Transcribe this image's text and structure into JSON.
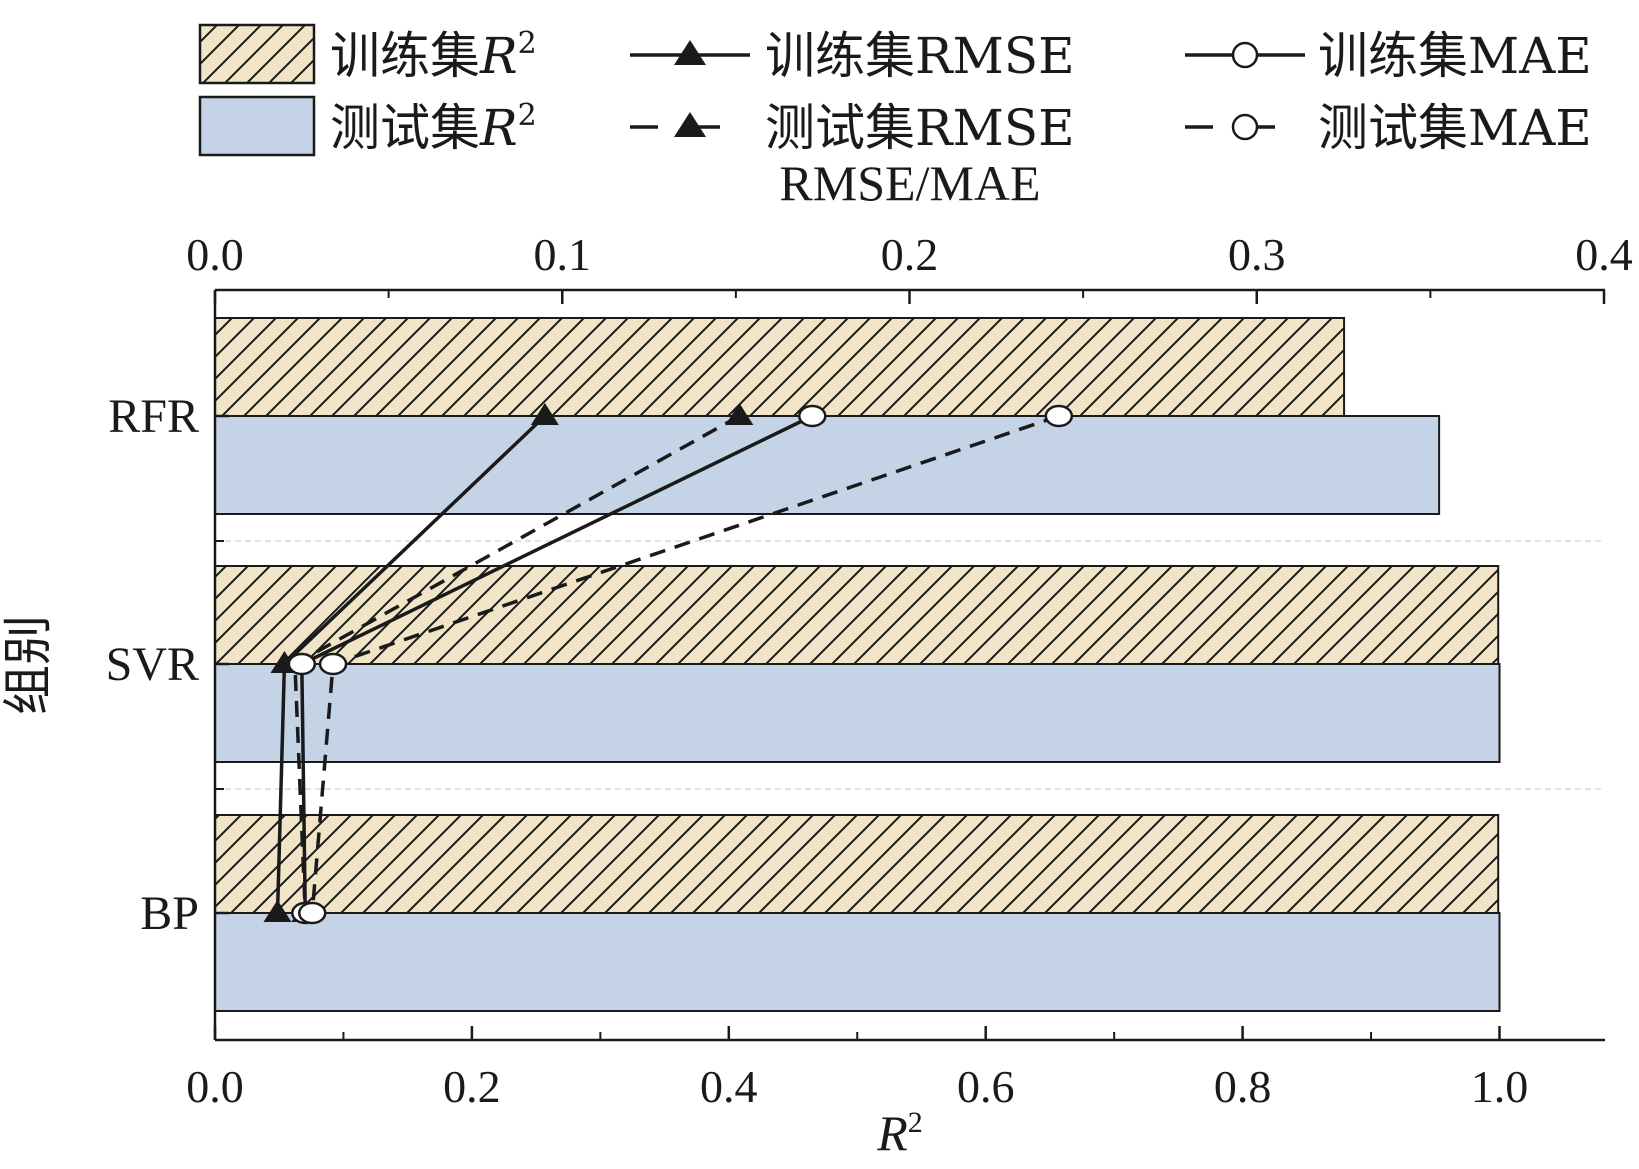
{
  "chart_data": {
    "type": "bar",
    "categories": [
      "RFR",
      "SVR",
      "BP"
    ],
    "bar_series": [
      {
        "name": "训练集R",
        "superscript": "2",
        "values": [
          0.879,
          0.999,
          0.999
        ],
        "color": "#f1e4c7",
        "pattern": "hatch"
      },
      {
        "name": "测试集R",
        "superscript": "2",
        "values": [
          0.953,
          1.0,
          1.0
        ],
        "color": "#c5d3e6",
        "pattern": "solid"
      }
    ],
    "line_series": [
      {
        "name": "训练集RMSE",
        "values": [
          0.095,
          0.02,
          0.018
        ],
        "marker": "triangle",
        "dash": "solid"
      },
      {
        "name": "测试集RMSE",
        "values": [
          0.151,
          0.023,
          0.026
        ],
        "marker": "triangle",
        "dash": "dashed"
      },
      {
        "name": "训练集MAE",
        "values": [
          0.172,
          0.025,
          0.026
        ],
        "marker": "circle",
        "dash": "solid"
      },
      {
        "name": "测试集MAE",
        "values": [
          0.243,
          0.034,
          0.028
        ],
        "marker": "circle",
        "dash": "dashed"
      }
    ],
    "x_bottom": {
      "label": "R",
      "superscript": "2",
      "ticks": [
        "0.0",
        "0.2",
        "0.4",
        "0.6",
        "0.8",
        "1.0"
      ],
      "range": [
        0,
        1.08
      ]
    },
    "x_top": {
      "label": "RMSE/MAE",
      "ticks": [
        "0.0",
        "0.1",
        "0.2",
        "0.3",
        "0.4"
      ],
      "range": [
        0,
        0.4
      ]
    },
    "y_axis": {
      "label": "组别"
    },
    "legend_position": "top"
  }
}
